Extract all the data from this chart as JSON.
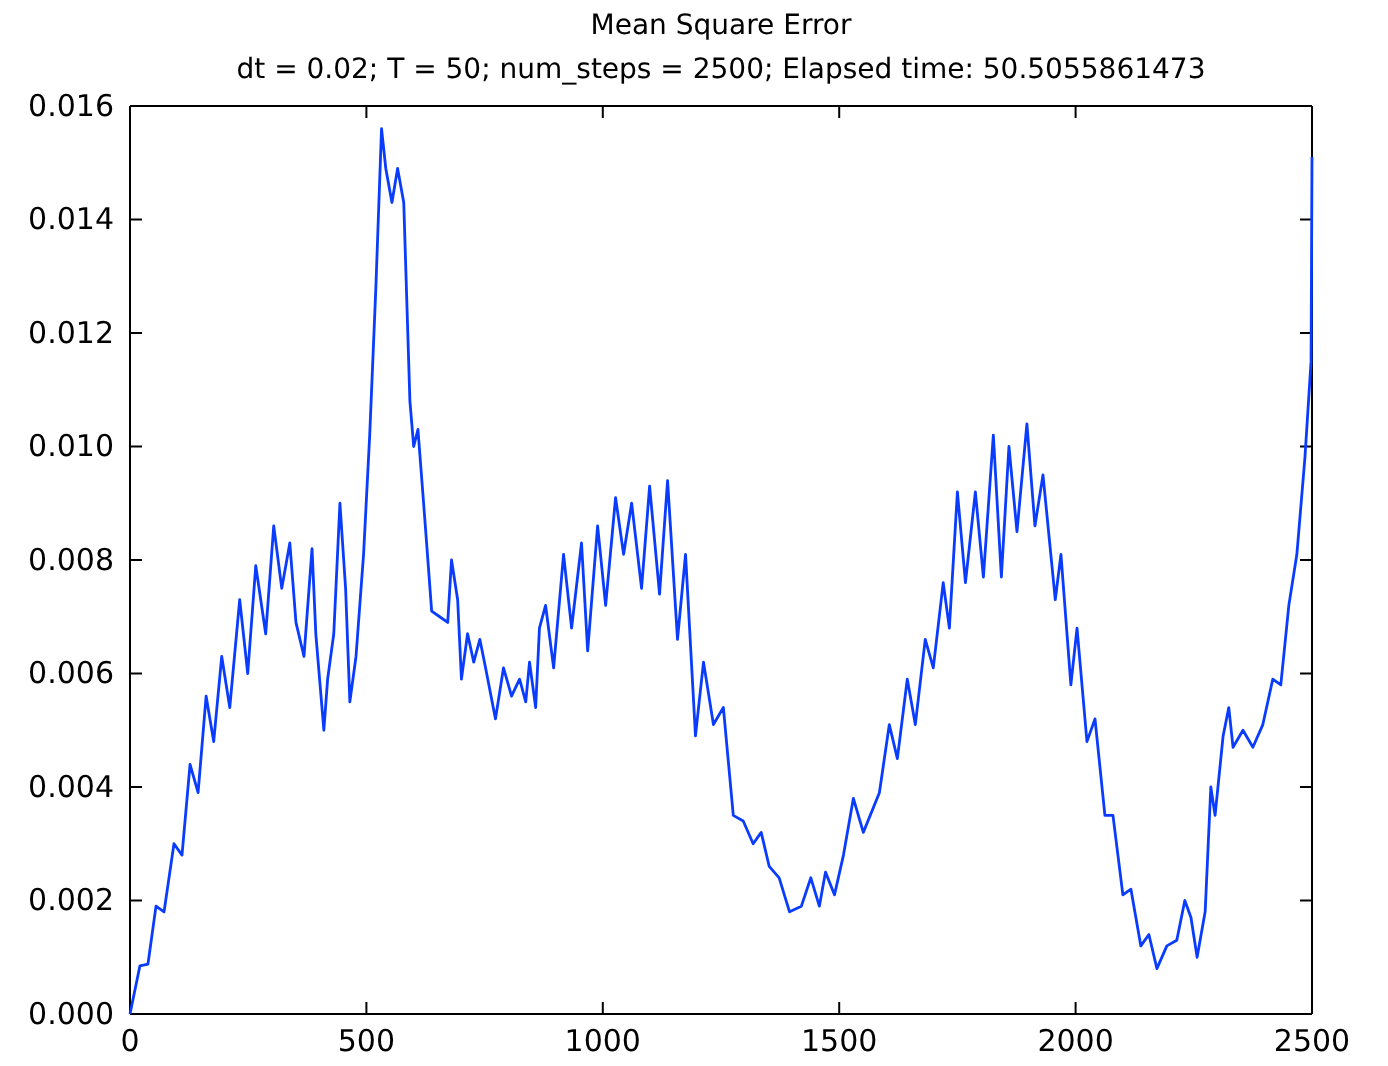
{
  "chart_data": {
    "type": "line",
    "title": "Mean Square Error",
    "subtitle": "dt = 0.02; T = 50; num_steps = 2500; Elapsed time: 50.5055861473",
    "x": [
      0,
      21,
      38,
      55,
      72,
      93,
      110,
      127,
      144,
      161,
      177,
      194,
      211,
      232,
      249,
      266,
      287,
      304,
      321,
      338,
      351,
      368,
      385,
      393,
      410,
      418,
      431,
      444,
      456,
      465,
      478,
      494,
      507,
      520,
      532,
      541,
      554,
      566,
      579,
      592,
      600,
      609,
      621,
      630,
      638,
      655,
      672,
      680,
      693,
      701,
      714,
      727,
      740,
      752,
      773,
      790,
      807,
      824,
      837,
      845,
      858,
      866,
      879,
      896,
      917,
      934,
      955,
      968,
      989,
      1006,
      1027,
      1044,
      1061,
      1082,
      1099,
      1120,
      1137,
      1158,
      1175,
      1196,
      1213,
      1234,
      1255,
      1276,
      1297,
      1318,
      1335,
      1352,
      1373,
      1395,
      1420,
      1440,
      1458,
      1471,
      1490,
      1509,
      1530,
      1551,
      1585,
      1606,
      1623,
      1644,
      1661,
      1682,
      1699,
      1720,
      1733,
      1750,
      1767,
      1788,
      1805,
      1826,
      1843,
      1859,
      1876,
      1897,
      1914,
      1931,
      1957,
      1969,
      1990,
      2003,
      2024,
      2041,
      2062,
      2079,
      2100,
      2117,
      2138,
      2155,
      2172,
      2193,
      2214,
      2231,
      2244,
      2257,
      2274,
      2286,
      2295,
      2312,
      2324,
      2333,
      2354,
      2375,
      2396,
      2417,
      2434,
      2451,
      2468,
      2485,
      2498,
      2500
    ],
    "series": [
      {
        "color": "#0a3cff",
        "values": [
          0,
          0.00085,
          0.00088,
          0.0019,
          0.0018,
          0.003,
          0.0028,
          0.0044,
          0.0039,
          0.0056,
          0.0048,
          0.0063,
          0.0054,
          0.0073,
          0.006,
          0.0079,
          0.0067,
          0.0086,
          0.0075,
          0.0083,
          0.0069,
          0.0063,
          0.0082,
          0.0067,
          0.005,
          0.0059,
          0.0067,
          0.009,
          0.0075,
          0.0055,
          0.0063,
          0.0081,
          0.0102,
          0.0128,
          0.0156,
          0.0149,
          0.0143,
          0.0149,
          0.0143,
          0.0108,
          0.01,
          0.0103,
          0.009,
          0.008,
          0.0071,
          0.007,
          0.0069,
          0.008,
          0.0073,
          0.0059,
          0.0067,
          0.0062,
          0.0066,
          0.0061,
          0.0052,
          0.0061,
          0.0056,
          0.0059,
          0.0055,
          0.0062,
          0.0054,
          0.0068,
          0.0072,
          0.0061,
          0.0081,
          0.0068,
          0.0083,
          0.0064,
          0.0086,
          0.0072,
          0.0091,
          0.0081,
          0.009,
          0.0075,
          0.0093,
          0.0074,
          0.0094,
          0.0066,
          0.0081,
          0.0049,
          0.0062,
          0.0051,
          0.0054,
          0.0035,
          0.0034,
          0.003,
          0.0032,
          0.0026,
          0.0024,
          0.0018,
          0.0019,
          0.0024,
          0.0019,
          0.0025,
          0.0021,
          0.0028,
          0.0038,
          0.0032,
          0.0039,
          0.0051,
          0.0045,
          0.0059,
          0.0051,
          0.0066,
          0.0061,
          0.0076,
          0.0068,
          0.0092,
          0.0076,
          0.0092,
          0.0077,
          0.0102,
          0.0077,
          0.01,
          0.0085,
          0.0104,
          0.0086,
          0.0095,
          0.0073,
          0.0081,
          0.0058,
          0.0068,
          0.0048,
          0.0052,
          0.0035,
          0.0035,
          0.0021,
          0.0022,
          0.0012,
          0.0014,
          0.0008,
          0.0012,
          0.0013,
          0.002,
          0.0017,
          0.001,
          0.0018,
          0.004,
          0.0035,
          0.0049,
          0.0054,
          0.0047,
          0.005,
          0.0047,
          0.0051,
          0.0059,
          0.0058,
          0.0072,
          0.0081,
          0.0098,
          0.0115,
          0.0151
        ]
      }
    ],
    "xlim": [
      0,
      2500
    ],
    "xticks": [
      0,
      500,
      1000,
      1500,
      2000,
      2500
    ],
    "ylim": [
      0,
      0.016
    ],
    "yticks": [
      {
        "value": 0,
        "label": "0.000"
      },
      0.002,
      0.004,
      0.006,
      0.008,
      {
        "value": 0.01,
        "label": "0.010"
      },
      0.012,
      0.014,
      0.016
    ],
    "grid": false
  }
}
